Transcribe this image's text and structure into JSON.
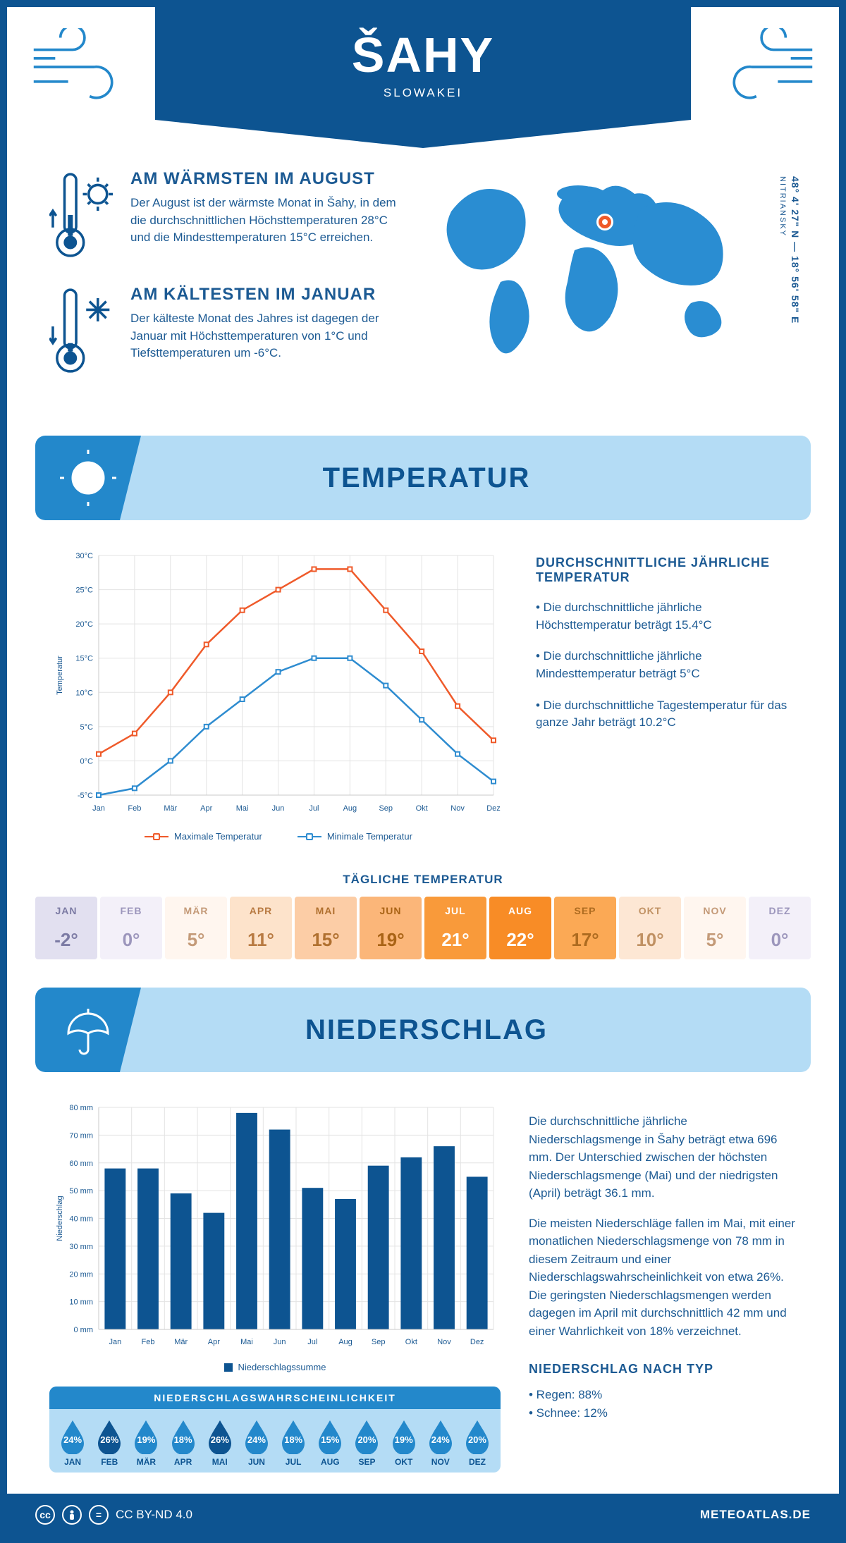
{
  "header": {
    "city": "ŠAHY",
    "country": "SLOWAKEI"
  },
  "intro": {
    "warm": {
      "title": "AM WÄRMSTEN IM AUGUST",
      "text": "Der August ist der wärmste Monat in Šahy, in dem die durchschnittlichen Höchsttemperaturen 28°C und die Mindesttemperaturen 15°C erreichen."
    },
    "cold": {
      "title": "AM KÄLTESTEN IM JANUAR",
      "text": "Der kälteste Monat des Jahres ist dagegen der Januar mit Höchsttemperaturen von 1°C und Tiefsttemperaturen um -6°C."
    },
    "coords": "48° 4' 27\" N — 18° 56' 58\" E",
    "region": "NITRIANSKY"
  },
  "sections": {
    "temperature": "TEMPERATUR",
    "precipitation": "NIEDERSCHLAG"
  },
  "months_short": [
    "Jan",
    "Feb",
    "Mär",
    "Apr",
    "Mai",
    "Jun",
    "Jul",
    "Aug",
    "Sep",
    "Okt",
    "Nov",
    "Dez"
  ],
  "months_upper": [
    "JAN",
    "FEB",
    "MÄR",
    "APR",
    "MAI",
    "JUN",
    "JUL",
    "AUG",
    "SEP",
    "OKT",
    "NOV",
    "DEZ"
  ],
  "temp_chart": {
    "type": "line",
    "ylabel": "Temperatur",
    "ylim": [
      -5,
      30
    ],
    "ytick_step": 5,
    "max_series": {
      "name": "Maximale Temperatur",
      "color": "#ef5a2a",
      "values": [
        1,
        4,
        10,
        17,
        22,
        25,
        28,
        28,
        22,
        16,
        8,
        3
      ]
    },
    "min_series": {
      "name": "Minimale Temperatur",
      "color": "#2e8cd0",
      "values": [
        -5,
        -4,
        0,
        5,
        9,
        13,
        15,
        15,
        11,
        6,
        1,
        -3
      ]
    },
    "grid_color": "#e3e3e3",
    "axis_color": "#c8c8c8"
  },
  "temp_text": {
    "title": "DURCHSCHNITTLICHE JÄHRLICHE TEMPERATUR",
    "b1": "• Die durchschnittliche jährliche Höchsttemperatur beträgt 15.4°C",
    "b2": "• Die durchschnittliche jährliche Mindesttemperatur beträgt 5°C",
    "b3": "• Die durchschnittliche Tagestemperatur für das ganze Jahr beträgt 10.2°C"
  },
  "daily": {
    "title": "TÄGLICHE TEMPERATUR",
    "values": [
      "-2°",
      "0°",
      "5°",
      "11°",
      "15°",
      "19°",
      "21°",
      "22°",
      "17°",
      "10°",
      "5°",
      "0°"
    ],
    "bg": [
      "#e2e0f0",
      "#f3f0f9",
      "#fff6ef",
      "#fde3cb",
      "#fccda6",
      "#fbb679",
      "#f99a3a",
      "#f88c26",
      "#fba955",
      "#fde7d4",
      "#fff6ef",
      "#f3f0f9"
    ],
    "fg": [
      "#7c7ba4",
      "#9c96bc",
      "#c49a78",
      "#b87a42",
      "#b0702f",
      "#a96315",
      "#ffffff",
      "#ffffff",
      "#ad6b20",
      "#c09163",
      "#c49a78",
      "#9c96bc"
    ]
  },
  "precip_chart": {
    "type": "bar",
    "ylabel": "Niederschlag",
    "ylim": [
      0,
      80
    ],
    "ytick_step": 10,
    "values": [
      58,
      58,
      49,
      42,
      78,
      72,
      51,
      47,
      59,
      62,
      66,
      55
    ],
    "bar_color": "#0d5491",
    "legend": "Niederschlagssumme"
  },
  "precip_text": {
    "p1": "Die durchschnittliche jährliche Niederschlagsmenge in Šahy beträgt etwa 696 mm. Der Unterschied zwischen der höchsten Niederschlagsmenge (Mai) und der niedrigsten (April) beträgt 36.1 mm.",
    "p2": "Die meisten Niederschläge fallen im Mai, mit einer monatlichen Niederschlagsmenge von 78 mm in diesem Zeitraum und einer Niederschlagswahrscheinlichkeit von etwa 26%. Die geringsten Niederschlagsmengen werden dagegen im April mit durchschnittlich 42 mm und einer Wahrlichkeit von 18% verzeichnet.",
    "type_title": "NIEDERSCHLAG NACH TYP",
    "rain": "• Regen: 88%",
    "snow": "• Schnee: 12%"
  },
  "precip_prob": {
    "title": "NIEDERSCHLAGSWAHRSCHEINLICHKEIT",
    "values": [
      "24%",
      "26%",
      "19%",
      "18%",
      "26%",
      "24%",
      "18%",
      "15%",
      "20%",
      "19%",
      "24%",
      "20%"
    ],
    "drop_fill": "#2388cb",
    "drop_fill_hi": "#0d5491"
  },
  "footer": {
    "license": "CC BY-ND 4.0",
    "site": "METEOATLAS.DE"
  }
}
